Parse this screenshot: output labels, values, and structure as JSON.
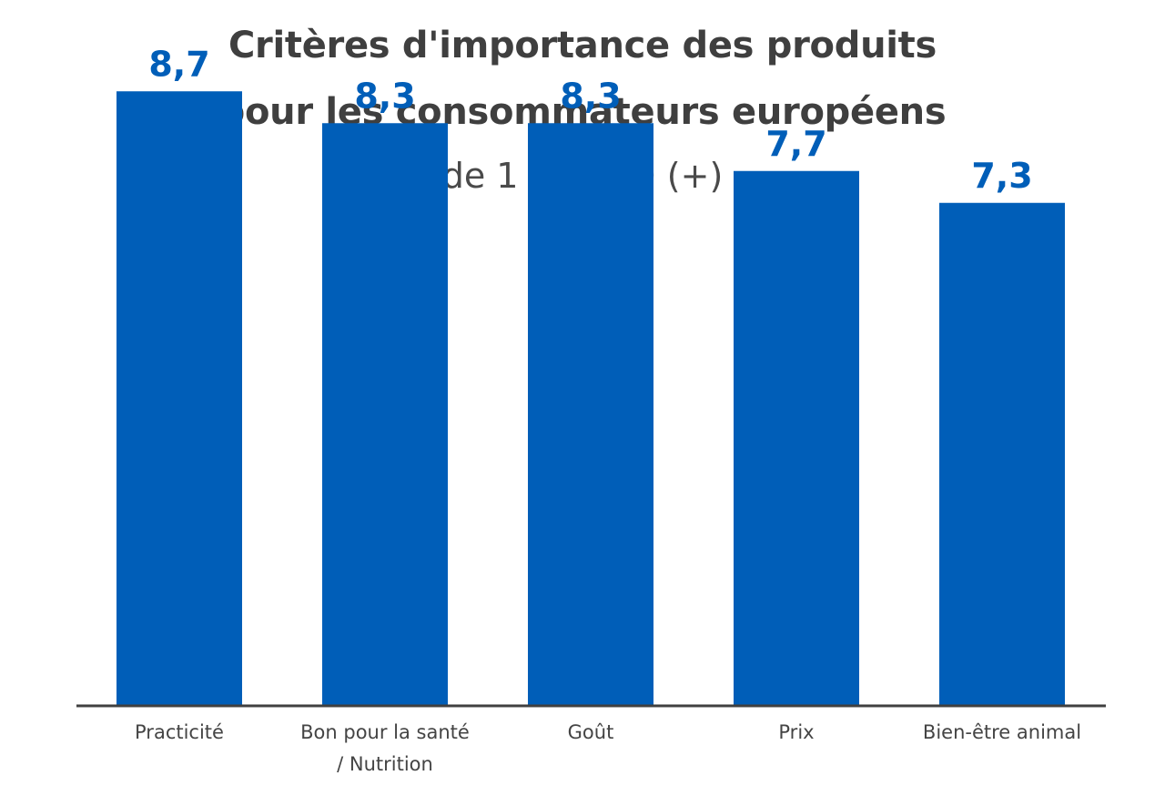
{
  "title_line_1": "Critères d'importance des produits",
  "title_line_2": "pour les consommateurs européens",
  "subtitle": "de 1 (-) à 10 (+)",
  "colors": {
    "bar": "#005eb8",
    "value_label": "#005eb8",
    "axis": "#404040"
  },
  "chart_data": {
    "type": "bar",
    "title": "Critères d'importance des produits pour les consommateurs européens",
    "subtitle": "de 1 (-) à 10 (+)",
    "xlabel": "",
    "ylabel": "",
    "categories": [
      [
        "Practicité"
      ],
      [
        "Bon pour la santé",
        "/ Nutrition"
      ],
      [
        "Goût"
      ],
      [
        "Prix"
      ],
      [
        "Bien-être animal"
      ]
    ],
    "values": [
      8.7,
      8.3,
      8.3,
      7.7,
      7.3
    ],
    "value_labels": [
      "8,7",
      "8,3",
      "8,3",
      "7,7",
      "7,3"
    ],
    "ylim": [
      1,
      10
    ],
    "grid": false,
    "legend": "none"
  }
}
